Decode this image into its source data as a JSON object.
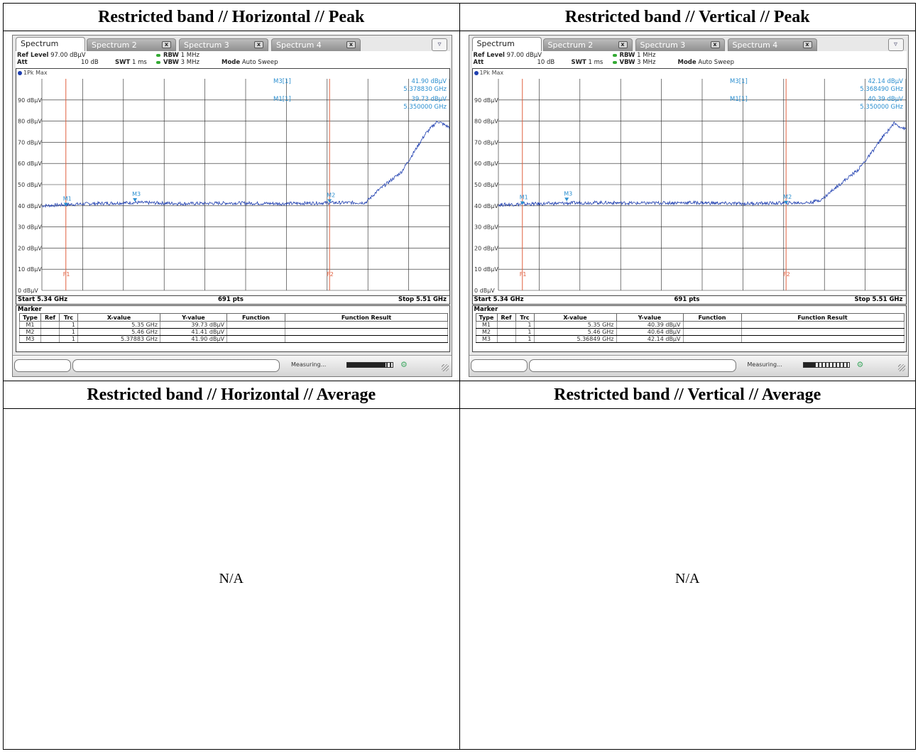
{
  "report": {
    "headers": {
      "h_peak": "Restricted band // Horizontal // Peak",
      "v_peak": "Restricted band // Vertical // Peak",
      "h_avg": "Restricted band // Horizontal // Average",
      "v_avg": "Restricted band // Vertical // Average"
    },
    "na_text": "N/A"
  },
  "analyzers": [
    {
      "tabs": [
        "Spectrum",
        "Spectrum 2",
        "Spectrum 3",
        "Spectrum 4"
      ],
      "tab_close": "x",
      "settings": {
        "ref_level_label": "Ref Level",
        "ref_level_value": "97.00 dBµV",
        "att_label": "Att",
        "att_value": "10 dB",
        "swt_label": "SWT",
        "swt_value": "1 ms",
        "rbw_label": "RBW",
        "rbw_value": "1 MHz",
        "vbw_label": "VBW",
        "vbw_value": "3 MHz",
        "mode_label": "Mode",
        "mode_value": "Auto Sweep"
      },
      "trace_label": "1Pk Max",
      "readout": {
        "m3_label": "M3[1]",
        "m3_level": "41.90 dBµV",
        "m3_freq": "5.378830 GHz",
        "m1_label": "M1[1]",
        "m1_level": "39.73 dBµV",
        "m1_freq": "5.350000 GHz"
      },
      "status": {
        "start": "Start 5.34 GHz",
        "points": "691 pts",
        "stop": "Stop 5.51 GHz"
      },
      "marker_title": "Marker",
      "marker_headers": [
        "Type",
        "Ref",
        "Trc",
        "X-value",
        "Y-value",
        "Function",
        "Function Result"
      ],
      "markers": [
        {
          "type": "M1",
          "ref": "",
          "trc": "1",
          "x": "5.35 GHz",
          "y": "39.73 dBµV",
          "fn": "",
          "fr": ""
        },
        {
          "type": "M2",
          "ref": "",
          "trc": "1",
          "x": "5.46 GHz",
          "y": "41.41 dBµV",
          "fn": "",
          "fr": ""
        },
        {
          "type": "M3",
          "ref": "",
          "trc": "1",
          "x": "5.37883 GHz",
          "y": "41.90 dBµV",
          "fn": "",
          "fr": ""
        }
      ],
      "measuring": "Measuring...",
      "progress": 0.85
    },
    {
      "tabs": [
        "Spectrum",
        "Spectrum 2",
        "Spectrum 3",
        "Spectrum 4"
      ],
      "tab_close": "x",
      "settings": {
        "ref_level_label": "Ref Level",
        "ref_level_value": "97.00 dBµV",
        "att_label": "Att",
        "att_value": "10 dB",
        "swt_label": "SWT",
        "swt_value": "1 ms",
        "rbw_label": "RBW",
        "rbw_value": "1 MHz",
        "vbw_label": "VBW",
        "vbw_value": "3 MHz",
        "mode_label": "Mode",
        "mode_value": "Auto Sweep"
      },
      "trace_label": "1Pk Max",
      "readout": {
        "m3_label": "M3[1]",
        "m3_level": "42.14 dBµV",
        "m3_freq": "5.368490 GHz",
        "m1_label": "M1[1]",
        "m1_level": "40.39 dBµV",
        "m1_freq": "5.350000 GHz"
      },
      "status": {
        "start": "Start 5.34 GHz",
        "points": "691 pts",
        "stop": "Stop 5.51 GHz"
      },
      "marker_title": "Marker",
      "marker_headers": [
        "Type",
        "Ref",
        "Trc",
        "X-value",
        "Y-value",
        "Function",
        "Function Result"
      ],
      "markers": [
        {
          "type": "M1",
          "ref": "",
          "trc": "1",
          "x": "5.35 GHz",
          "y": "40.39 dBµV",
          "fn": "",
          "fr": ""
        },
        {
          "type": "M2",
          "ref": "",
          "trc": "1",
          "x": "5.46 GHz",
          "y": "40.64 dBµV",
          "fn": "",
          "fr": ""
        },
        {
          "type": "M3",
          "ref": "",
          "trc": "1",
          "x": "5.36849 GHz",
          "y": "42.14 dBµV",
          "fn": "",
          "fr": ""
        }
      ],
      "measuring": "Measuring...",
      "progress": 0.25
    }
  ],
  "chart_data": [
    {
      "type": "line",
      "title": "",
      "xlabel": "",
      "ylabel": "",
      "xlim": [
        5.34,
        5.51
      ],
      "ylim": [
        0,
        100
      ],
      "grid": true,
      "ytick_labels": [
        "0 dBµV",
        "10 dBµV",
        "20 dBµV",
        "30 dBµV",
        "40 dBµV",
        "50 dBµV",
        "60 dBµV",
        "70 dBµV",
        "80 dBµV",
        "90 dBµV"
      ],
      "ytick_values": [
        0,
        10,
        20,
        30,
        40,
        50,
        60,
        70,
        80,
        90
      ],
      "limit_lines": [
        {
          "label": "F1",
          "x": 5.35
        },
        {
          "label": "F2",
          "x": 5.46
        }
      ],
      "markers": [
        {
          "label": "M1",
          "x": 5.35,
          "y": 39.73
        },
        {
          "label": "M2",
          "x": 5.46,
          "y": 41.41
        },
        {
          "label": "M3",
          "x": 5.37883,
          "y": 41.9
        }
      ],
      "series": [
        {
          "values_x": [
            5.34,
            5.36,
            5.38,
            5.4,
            5.42,
            5.44,
            5.46,
            5.475,
            5.48,
            5.49,
            5.495,
            5.5,
            5.505,
            5.51
          ],
          "values_y": [
            40,
            41,
            41.5,
            41,
            41.3,
            41,
            41.4,
            41.5,
            47,
            56,
            65,
            74,
            80,
            77
          ]
        }
      ]
    },
    {
      "type": "line",
      "title": "",
      "xlabel": "",
      "ylabel": "",
      "xlim": [
        5.34,
        5.51
      ],
      "ylim": [
        0,
        100
      ],
      "grid": true,
      "ytick_labels": [
        "0 dBµV",
        "10 dBµV",
        "20 dBµV",
        "30 dBµV",
        "40 dBµV",
        "50 dBµV",
        "60 dBµV",
        "70 dBµV",
        "80 dBµV",
        "90 dBµV"
      ],
      "ytick_values": [
        0,
        10,
        20,
        30,
        40,
        50,
        60,
        70,
        80,
        90
      ],
      "limit_lines": [
        {
          "label": "F1",
          "x": 5.35
        },
        {
          "label": "F2",
          "x": 5.46
        }
      ],
      "markers": [
        {
          "label": "M1",
          "x": 5.35,
          "y": 40.39
        },
        {
          "label": "M2",
          "x": 5.46,
          "y": 40.64
        },
        {
          "label": "M3",
          "x": 5.36849,
          "y": 42.14
        }
      ],
      "series": [
        {
          "values_x": [
            5.34,
            5.36,
            5.38,
            5.4,
            5.42,
            5.44,
            5.46,
            5.47,
            5.475,
            5.48,
            5.49,
            5.495,
            5.5,
            5.505,
            5.51
          ],
          "values_y": [
            40.5,
            41,
            41.5,
            41.2,
            41.5,
            41,
            41.3,
            41.5,
            43,
            48,
            57,
            64,
            72,
            79,
            76
          ]
        }
      ]
    }
  ]
}
